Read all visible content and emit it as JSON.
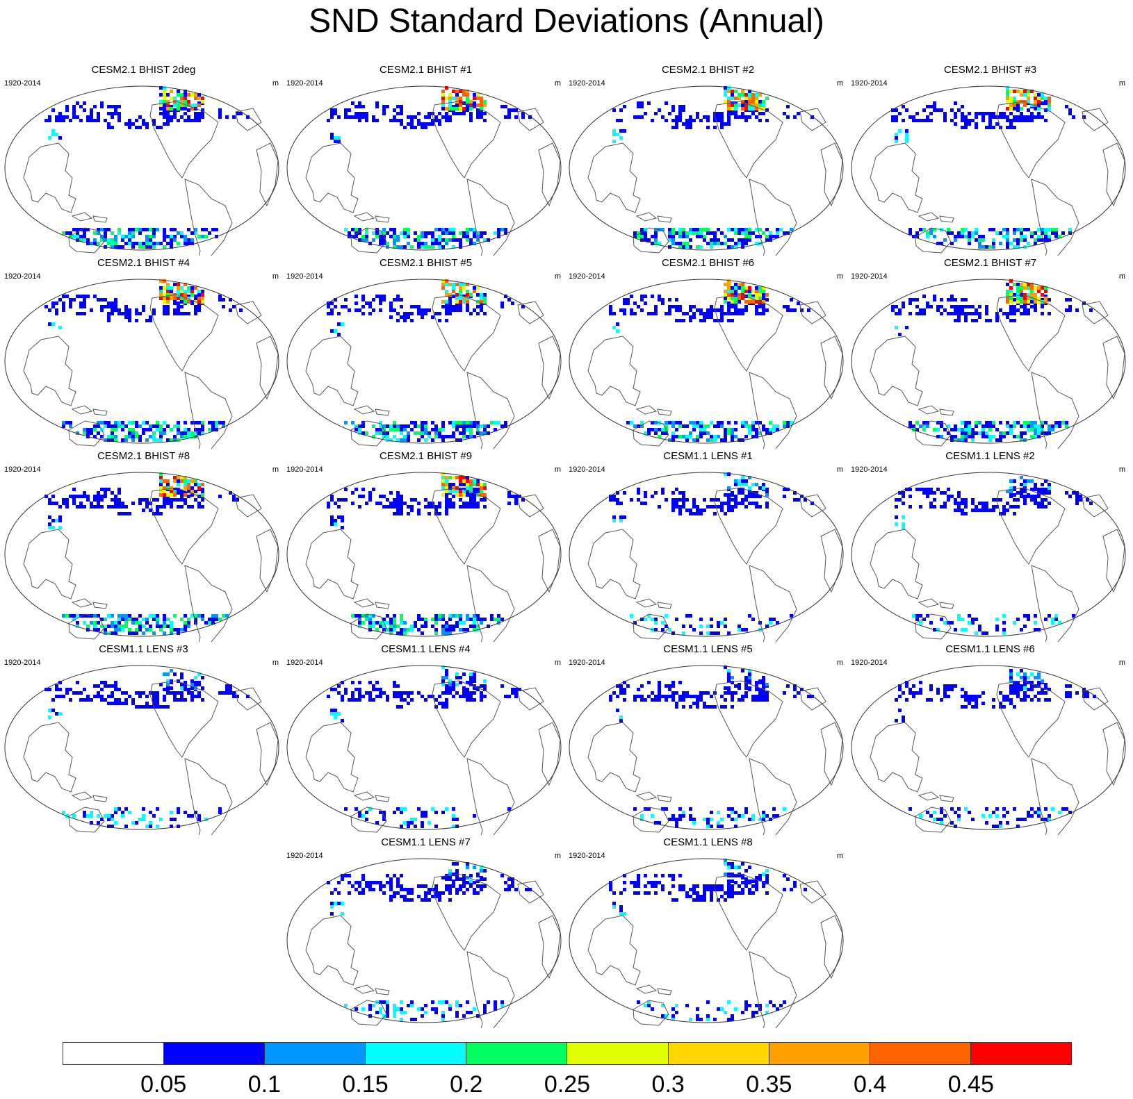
{
  "title": "SND Standard Deviations (Annual)",
  "panels": [
    {
      "title": "CESM2.1 BHIST 2deg",
      "period": "1920-2014",
      "units": "m",
      "kind": "cesm2"
    },
    {
      "title": "CESM2.1 BHIST #1",
      "period": "1920-2014",
      "units": "m",
      "kind": "cesm2"
    },
    {
      "title": "CESM2.1 BHIST #2",
      "period": "1920-2014",
      "units": "m",
      "kind": "cesm2"
    },
    {
      "title": "CESM2.1 BHIST #3",
      "period": "1920-2014",
      "units": "m",
      "kind": "cesm2"
    },
    {
      "title": "CESM2.1 BHIST #4",
      "period": "1920-2014",
      "units": "m",
      "kind": "cesm2"
    },
    {
      "title": "CESM2.1 BHIST #5",
      "period": "1920-2014",
      "units": "m",
      "kind": "cesm2"
    },
    {
      "title": "CESM2.1 BHIST #6",
      "period": "1920-2014",
      "units": "m",
      "kind": "cesm2"
    },
    {
      "title": "CESM2.1 BHIST #7",
      "period": "1920-2014",
      "units": "m",
      "kind": "cesm2"
    },
    {
      "title": "CESM2.1 BHIST #8",
      "period": "1920-2014",
      "units": "m",
      "kind": "cesm2"
    },
    {
      "title": "CESM2.1 BHIST #9",
      "period": "1920-2014",
      "units": "m",
      "kind": "cesm2"
    },
    {
      "title": "CESM1.1 LENS #1",
      "period": "1920-2014",
      "units": "m",
      "kind": "cesm1"
    },
    {
      "title": "CESM1.1 LENS #2",
      "period": "1920-2014",
      "units": "m",
      "kind": "cesm1"
    },
    {
      "title": "CESM1.1 LENS #3",
      "period": "1920-2014",
      "units": "m",
      "kind": "cesm1"
    },
    {
      "title": "CESM1.1 LENS #4",
      "period": "1920-2014",
      "units": "m",
      "kind": "cesm1"
    },
    {
      "title": "CESM1.1 LENS #5",
      "period": "1920-2014",
      "units": "m",
      "kind": "cesm1"
    },
    {
      "title": "CESM1.1 LENS #6",
      "period": "1920-2014",
      "units": "m",
      "kind": "cesm1"
    },
    {
      "title": "CESM1.1 LENS #7",
      "period": "1920-2014",
      "units": "m",
      "kind": "cesm1"
    },
    {
      "title": "CESM1.1 LENS #8",
      "period": "1920-2014",
      "units": "m",
      "kind": "cesm1"
    }
  ],
  "colorbar": {
    "colors": [
      "#ffffff",
      "#0000ff",
      "#0096ff",
      "#00ffff",
      "#00ff60",
      "#e1ff00",
      "#ffd700",
      "#ffa000",
      "#ff6400",
      "#ff0000"
    ],
    "labels": [
      "0.05",
      "0.1",
      "0.15",
      "0.2",
      "0.25",
      "0.3",
      "0.35",
      "0.4",
      "0.45"
    ]
  }
}
